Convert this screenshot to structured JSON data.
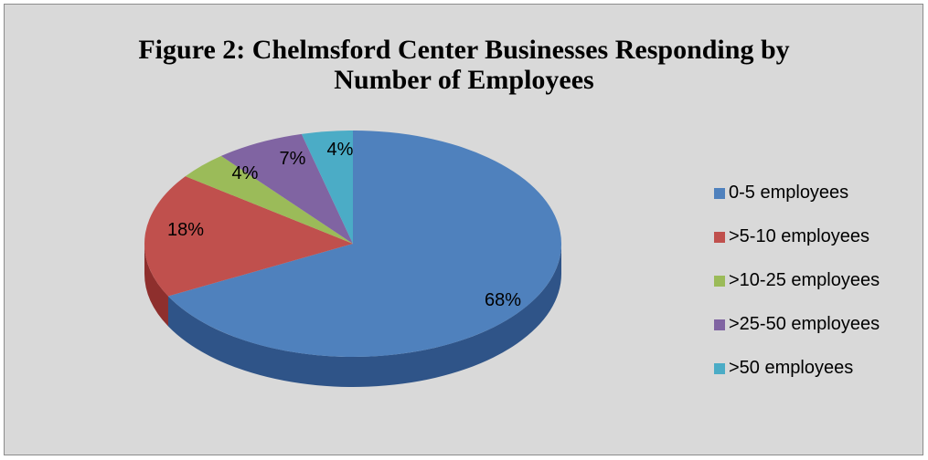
{
  "chart_data": {
    "type": "pie",
    "title": "Figure 2: Chelmsford Center Businesses Responding  by Number of Employees",
    "title_lines": [
      "Figure 2: Chelmsford Center Businesses Responding  by",
      "Number of Employees"
    ],
    "style": "3d-pie",
    "legend_position": "right",
    "slices": [
      {
        "label": "0-5 employees",
        "value": 68,
        "display": "68%",
        "color": "#4f81bd",
        "side_color": "#2f5488"
      },
      {
        "label": ">5-10 employees",
        "value": 18,
        "display": "18%",
        "color": "#c0504d",
        "side_color": "#8e2f2d"
      },
      {
        "label": ">10-25 employees",
        "value": 4,
        "display": "4%",
        "color": "#9bbb59",
        "side_color": "#6b8a33"
      },
      {
        "label": ">25-50 employees",
        "value": 7,
        "display": "7%",
        "color": "#8064a2",
        "side_color": "#5a4378"
      },
      {
        "label": ">50 employees",
        "value": 4,
        "display": "4%",
        "color": "#4bacc6",
        "side_color": "#2e7f96"
      }
    ]
  }
}
